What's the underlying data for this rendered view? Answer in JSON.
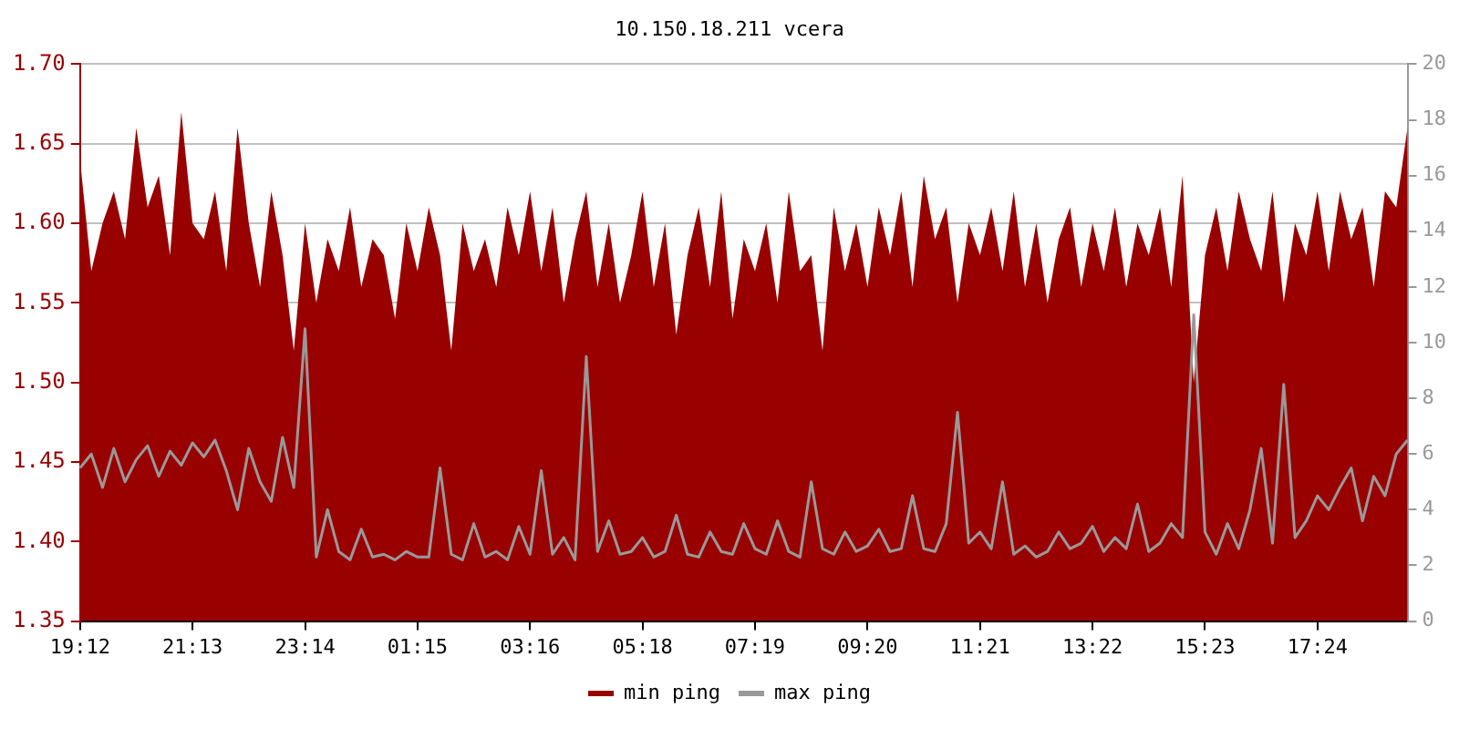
{
  "chart_data": {
    "type": "area",
    "title": "10.150.18.211 vcera",
    "categories": [
      "19:12",
      null,
      null,
      null,
      null,
      null,
      null,
      null,
      null,
      null,
      "21:13",
      null,
      null,
      null,
      null,
      null,
      null,
      null,
      null,
      null,
      "23:14",
      null,
      null,
      null,
      null,
      null,
      null,
      null,
      null,
      null,
      "01:15",
      null,
      null,
      null,
      null,
      null,
      null,
      null,
      null,
      null,
      "03:16",
      null,
      null,
      null,
      null,
      null,
      null,
      null,
      null,
      null,
      "05:18",
      null,
      null,
      null,
      null,
      null,
      null,
      null,
      null,
      null,
      "07:19",
      null,
      null,
      null,
      null,
      null,
      null,
      null,
      null,
      null,
      "09:20",
      null,
      null,
      null,
      null,
      null,
      null,
      null,
      null,
      null,
      "11:21",
      null,
      null,
      null,
      null,
      null,
      null,
      null,
      null,
      null,
      "13:22",
      null,
      null,
      null,
      null,
      null,
      null,
      null,
      null,
      null,
      "15:23",
      null,
      null,
      null,
      null,
      null,
      null,
      null,
      null,
      null,
      "17:24",
      null,
      null,
      null,
      null,
      null,
      null,
      null,
      null
    ],
    "series": [
      {
        "name": "min ping",
        "color": "#990000",
        "values": [
          1.64,
          1.57,
          1.6,
          1.62,
          1.59,
          1.66,
          1.61,
          1.63,
          1.58,
          1.67,
          1.6,
          1.59,
          1.62,
          1.57,
          1.66,
          1.6,
          1.56,
          1.62,
          1.58,
          1.52,
          1.6,
          1.55,
          1.59,
          1.57,
          1.61,
          1.56,
          1.59,
          1.58,
          1.54,
          1.6,
          1.57,
          1.61,
          1.58,
          1.52,
          1.6,
          1.57,
          1.59,
          1.56,
          1.61,
          1.58,
          1.62,
          1.57,
          1.61,
          1.55,
          1.59,
          1.62,
          1.56,
          1.6,
          1.55,
          1.58,
          1.62,
          1.56,
          1.6,
          1.53,
          1.58,
          1.61,
          1.56,
          1.62,
          1.54,
          1.59,
          1.57,
          1.6,
          1.55,
          1.62,
          1.57,
          1.58,
          1.52,
          1.61,
          1.57,
          1.6,
          1.56,
          1.61,
          1.58,
          1.62,
          1.56,
          1.63,
          1.59,
          1.61,
          1.55,
          1.6,
          1.58,
          1.61,
          1.57,
          1.62,
          1.56,
          1.6,
          1.55,
          1.59,
          1.61,
          1.56,
          1.6,
          1.57,
          1.61,
          1.56,
          1.6,
          1.58,
          1.61,
          1.56,
          1.63,
          1.5,
          1.58,
          1.61,
          1.57,
          1.62,
          1.59,
          1.57,
          1.62,
          1.55,
          1.6,
          1.58,
          1.62,
          1.57,
          1.62,
          1.59,
          1.61,
          1.56,
          1.62,
          1.61,
          1.66
        ]
      },
      {
        "name": "max ping",
        "type": "line",
        "axis": "y2",
        "color": "#999999",
        "values": [
          5.5,
          6.0,
          4.8,
          6.2,
          5.0,
          5.8,
          6.3,
          5.2,
          6.1,
          5.6,
          6.4,
          5.9,
          6.5,
          5.4,
          4.0,
          6.2,
          5.0,
          4.3,
          6.6,
          4.8,
          10.5,
          2.3,
          4.0,
          2.5,
          2.2,
          3.3,
          2.3,
          2.4,
          2.2,
          2.5,
          2.3,
          2.3,
          5.5,
          2.4,
          2.2,
          3.5,
          2.3,
          2.5,
          2.2,
          3.4,
          2.4,
          5.4,
          2.4,
          3.0,
          2.2,
          9.5,
          2.5,
          3.6,
          2.4,
          2.5,
          3.0,
          2.3,
          2.5,
          3.8,
          2.4,
          2.3,
          3.2,
          2.5,
          2.4,
          3.5,
          2.6,
          2.4,
          3.6,
          2.5,
          2.3,
          5.0,
          2.6,
          2.4,
          3.2,
          2.5,
          2.7,
          3.3,
          2.5,
          2.6,
          4.5,
          2.6,
          2.5,
          3.5,
          7.5,
          2.8,
          3.2,
          2.6,
          5.0,
          2.4,
          2.7,
          2.3,
          2.5,
          3.2,
          2.6,
          2.8,
          3.4,
          2.5,
          3.0,
          2.6,
          4.2,
          2.5,
          2.8,
          3.5,
          3.0,
          11.0,
          3.2,
          2.4,
          3.5,
          2.6,
          4.0,
          6.2,
          2.8,
          8.5,
          3.0,
          3.6,
          4.5,
          4.0,
          4.8,
          5.5,
          3.6,
          5.2,
          4.5,
          6.0,
          6.5
        ]
      }
    ],
    "ylim": [
      1.35,
      1.7
    ],
    "yticks": [
      {
        "value": 1.35,
        "label": "1.35"
      },
      {
        "value": 1.4,
        "label": "1.40"
      },
      {
        "value": 1.45,
        "label": "1.45"
      },
      {
        "value": 1.5,
        "label": "1.50"
      },
      {
        "value": 1.55,
        "label": "1.55"
      },
      {
        "value": 1.6,
        "label": "1.60"
      },
      {
        "value": 1.65,
        "label": "1.65"
      },
      {
        "value": 1.7,
        "label": "1.70"
      }
    ],
    "y2lim": [
      0,
      20
    ],
    "y2ticks": [
      0,
      2,
      4,
      6,
      8,
      10,
      12,
      14,
      16,
      18,
      20
    ],
    "grid": "y",
    "legend": "bottom",
    "marker": "none",
    "line_style": "solid"
  }
}
